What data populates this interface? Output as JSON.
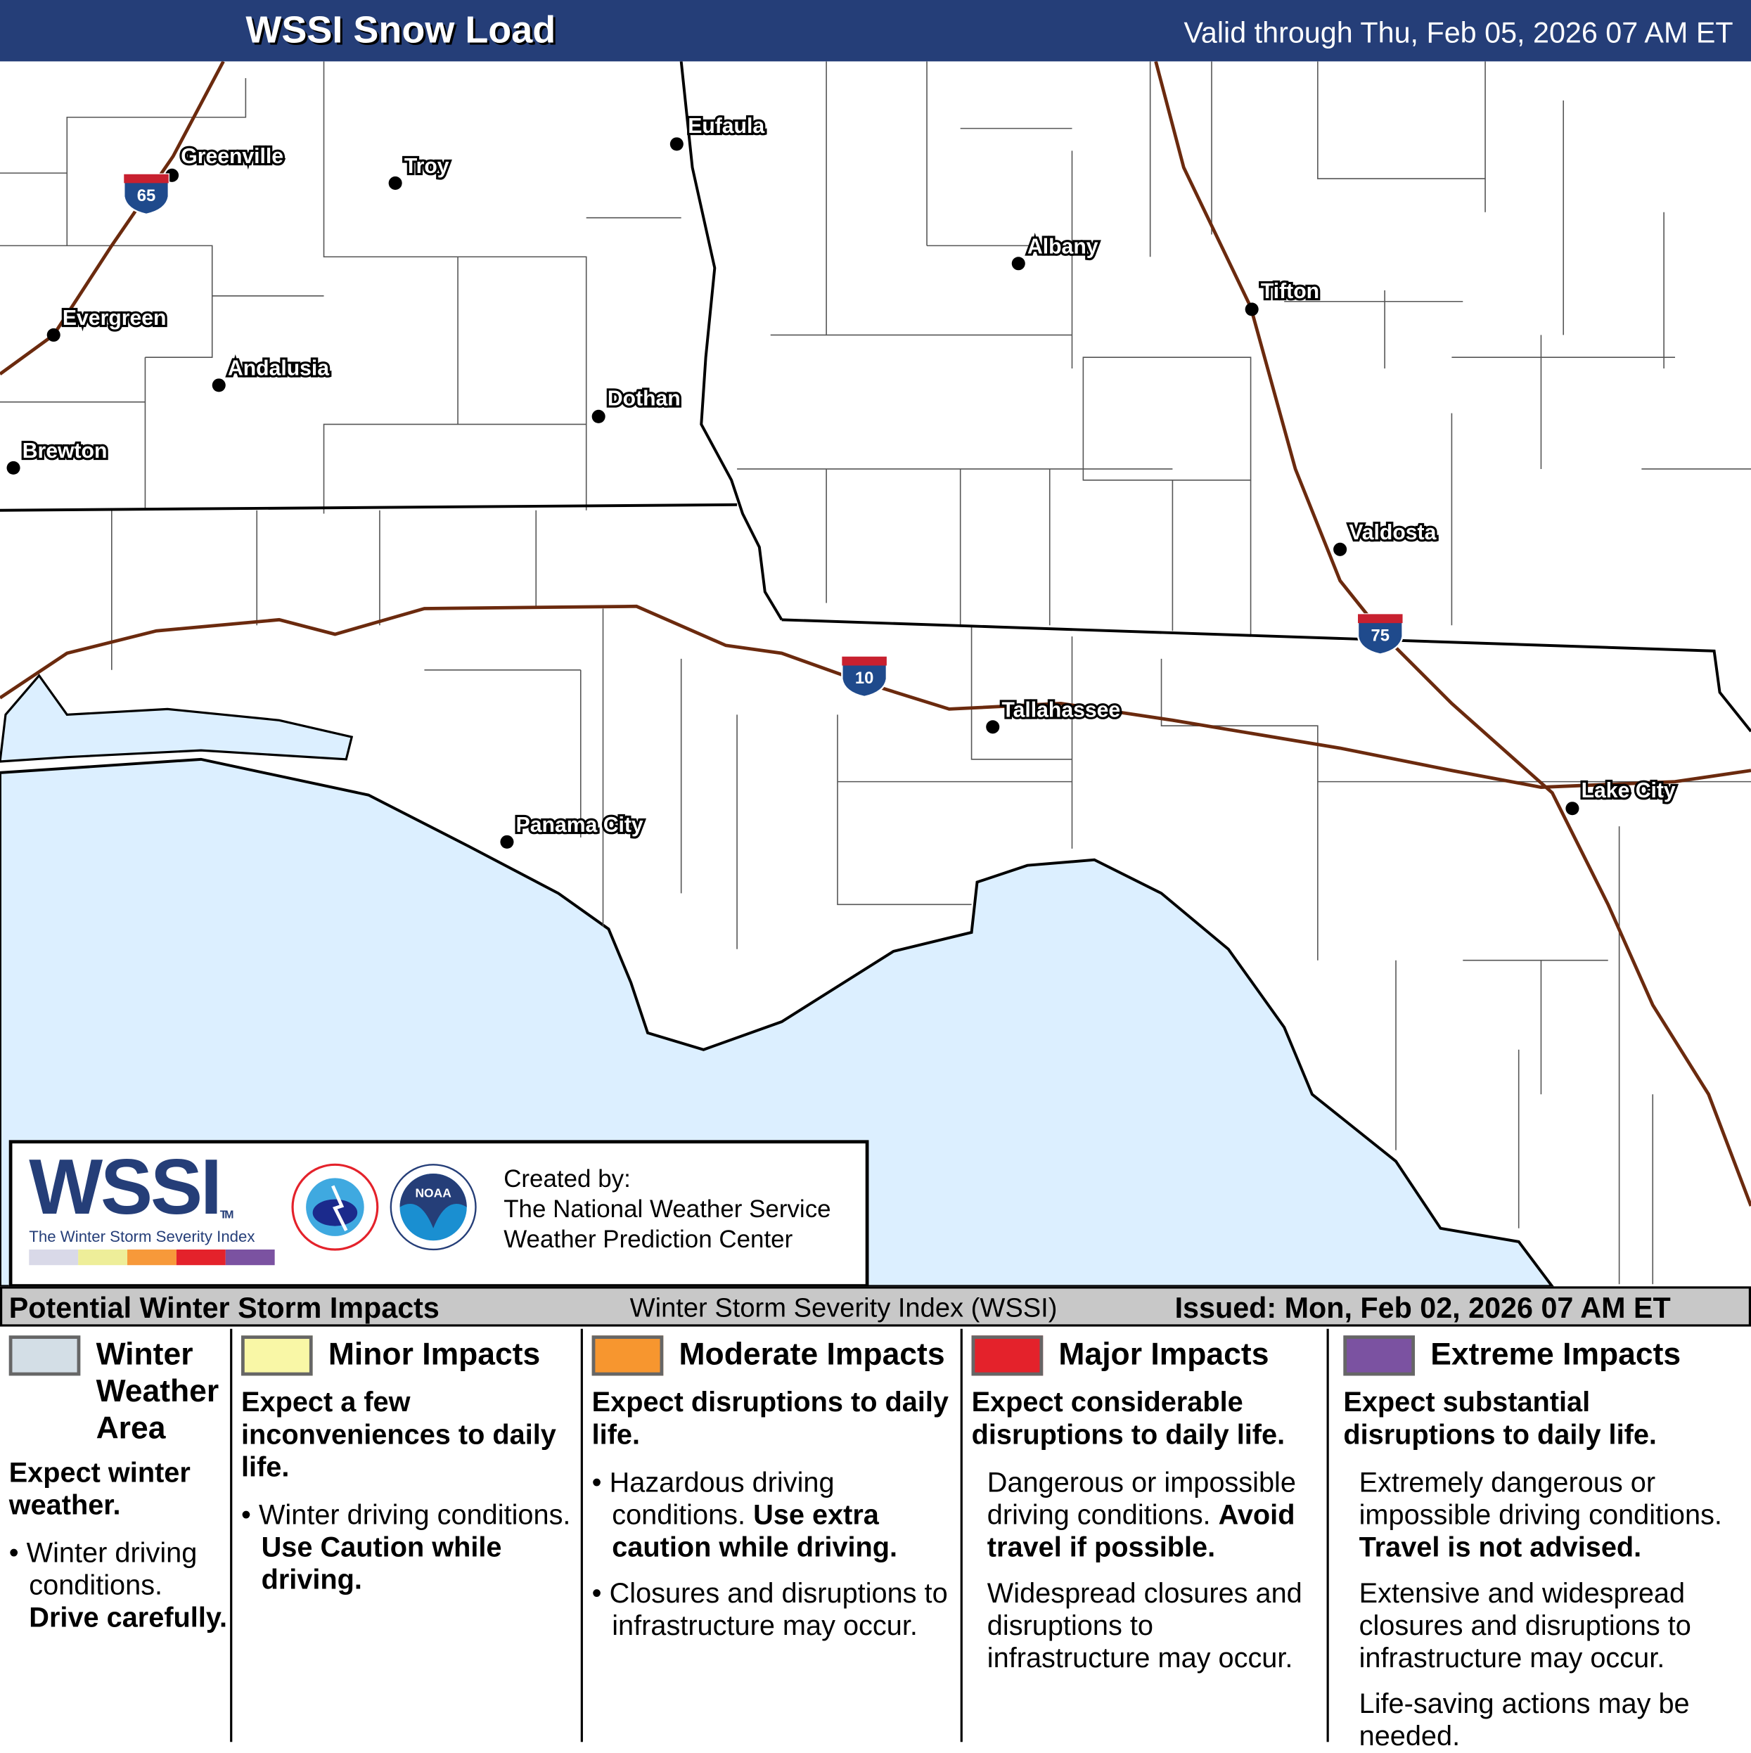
{
  "header": {
    "title": "WSSI Snow Load",
    "valid": "Valid through Thu, Feb 05, 2026 07 AM ET"
  },
  "map": {
    "colors": {
      "water": "#dcefff",
      "interstate": "#6b2a0e",
      "county": "#555555",
      "state": "#000000"
    },
    "cities": [
      {
        "name": "Greenville"
      },
      {
        "name": "Troy"
      },
      {
        "name": "Eufaula"
      },
      {
        "name": "Albany"
      },
      {
        "name": "Tifton"
      },
      {
        "name": "Evergreen"
      },
      {
        "name": "Andalusia"
      },
      {
        "name": "Dothan"
      },
      {
        "name": "Brewton"
      },
      {
        "name": "Valdosta"
      },
      {
        "name": "Tallahassee"
      },
      {
        "name": "Panama City"
      },
      {
        "name": "Lake City"
      }
    ],
    "interstates": [
      {
        "number": "65"
      },
      {
        "number": "10"
      },
      {
        "number": "75"
      }
    ]
  },
  "logo": {
    "wssi": "WSSI",
    "tm": "TM",
    "subtitle": "The Winter Storm Severity Index",
    "nws_text": "NATIONAL WEATHER SERVICE",
    "noaa_text": "NOAA",
    "scale_colors": [
      "#d9d9e8",
      "#eeee99",
      "#f7993a",
      "#e4222b",
      "#7b52a1"
    ],
    "created_by": "Created by:",
    "org1": "The National Weather Service",
    "org2": "Weather Prediction Center"
  },
  "legend": {
    "title": "Potential Winter Storm Impacts",
    "index": "Winter Storm Severity Index (WSSI)",
    "issued": "Issued: Mon, Feb 02, 2026 07 AM ET",
    "categories": [
      {
        "name": "Winter Weather Area",
        "color": "#d3dee6",
        "summary": "Expect winter weather.",
        "lines": [
          "Winter driving conditions.",
          "Drive carefully."
        ]
      },
      {
        "name": "Minor Impacts",
        "color": "#f9f7a6",
        "summary": "Expect a few inconveniences to daily life.",
        "lines": [
          "Winter driving conditions.",
          "Use Caution while driving."
        ]
      },
      {
        "name": "Moderate Impacts",
        "color": "#f7962f",
        "summary": "Expect disruptions to daily life.",
        "lines": [
          "Hazardous driving conditions.",
          "Use extra caution while driving.",
          "Closures and disruptions to infrastructure may occur."
        ]
      },
      {
        "name": "Major Impacts",
        "color": "#e4222b",
        "summary": "Expect considerable disruptions to daily life.",
        "lines": [
          "Dangerous or impossible driving conditions.",
          "Avoid travel if possible.",
          "Widespread closures and disruptions to infrastructure may occur."
        ]
      },
      {
        "name": "Extreme Impacts",
        "color": "#7b52a1",
        "summary": "Expect substantial disruptions to daily life.",
        "lines": [
          "Extremely dangerous or impossible driving conditions.",
          "Travel is not advised.",
          "Extensive and widespread closures and disruptions to infrastructure may occur.",
          "Life-saving actions may be needed."
        ]
      }
    ]
  }
}
